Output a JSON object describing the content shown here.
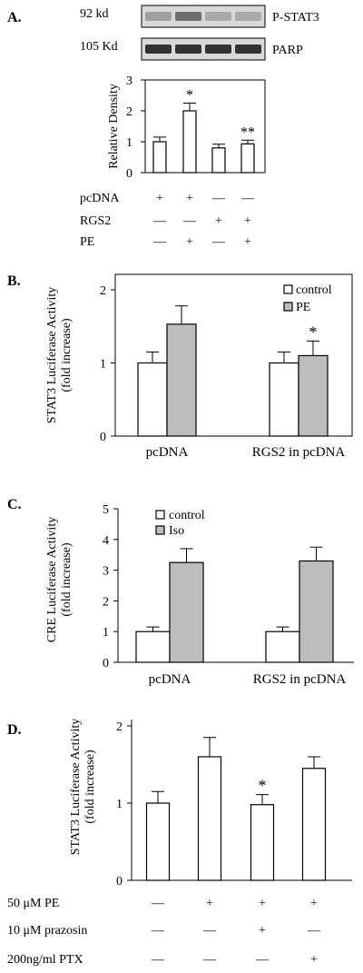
{
  "chart_data": [
    {
      "panel": "A.",
      "type": "bar",
      "blots": [
        {
          "mw": "92 kd",
          "name": "P-STAT3",
          "band_intensity": [
            0.35,
            0.6,
            0.3,
            0.3
          ]
        },
        {
          "mw": "105 Kd",
          "name": "PARP",
          "band_intensity": [
            0.9,
            0.9,
            0.9,
            0.9
          ]
        }
      ],
      "ylabel": "Relative Density",
      "ylim": [
        0,
        3
      ],
      "yticks": [
        "0",
        "1",
        "2",
        "3"
      ],
      "values": [
        1.0,
        2.0,
        0.8,
        0.93
      ],
      "errors": [
        0.15,
        0.25,
        0.12,
        0.12
      ],
      "annotations": [
        "",
        "*",
        "",
        "**"
      ],
      "conditions": [
        {
          "label": "pcDNA",
          "marks": [
            "+",
            "+",
            "—",
            "—"
          ]
        },
        {
          "label": "RGS2",
          "marks": [
            "—",
            "—",
            "+",
            "+"
          ]
        },
        {
          "label": "PE",
          "marks": [
            "—",
            "+",
            "—",
            "+"
          ]
        }
      ]
    },
    {
      "panel": "B.",
      "type": "bar",
      "ylabel": [
        "STAT3 Luciferase Activity",
        "(fold increase)"
      ],
      "ylim": [
        0,
        2
      ],
      "yticks": [
        "0",
        "1",
        "2"
      ],
      "categories": [
        "pcDNA",
        "RGS2 in pcDNA"
      ],
      "series": [
        {
          "name": "control",
          "color": "#ffffff",
          "values": [
            1.0,
            1.0
          ],
          "errors": [
            0.15,
            0.15
          ],
          "annotations": [
            "",
            ""
          ]
        },
        {
          "name": "PE",
          "color": "#bdbdbd",
          "values": [
            1.53,
            1.1
          ],
          "errors": [
            0.25,
            0.2
          ],
          "annotations": [
            "",
            "*"
          ]
        }
      ],
      "legend": "top-right"
    },
    {
      "panel": "C.",
      "type": "bar",
      "ylabel": [
        "CRE Luciferase Activity",
        "(fold increase)"
      ],
      "ylim": [
        0,
        5
      ],
      "yticks": [
        "0",
        "1",
        "2",
        "3",
        "4",
        "5"
      ],
      "categories": [
        "pcDNA",
        "RGS2 in pcDNA"
      ],
      "series": [
        {
          "name": "control",
          "color": "#ffffff",
          "values": [
            1.0,
            1.0
          ],
          "errors": [
            0.15,
            0.15
          ]
        },
        {
          "name": "Iso",
          "color": "#bdbdbd",
          "values": [
            3.25,
            3.3
          ],
          "errors": [
            0.45,
            0.45
          ]
        }
      ],
      "legend": "top-left"
    },
    {
      "panel": "D.",
      "type": "bar",
      "ylabel": [
        "STAT3 Luciferase Activity",
        "(fold increase)"
      ],
      "ylim": [
        0,
        2
      ],
      "yticks": [
        "0",
        "1",
        "2"
      ],
      "values": [
        1.0,
        1.6,
        0.98,
        1.45
      ],
      "errors": [
        0.15,
        0.25,
        0.13,
        0.15
      ],
      "annotations": [
        "",
        "",
        "*",
        ""
      ],
      "conditions": [
        {
          "label": "50 μM PE",
          "marks": [
            "—",
            "+",
            "+",
            "+"
          ]
        },
        {
          "label": "10 μM prazosin",
          "marks": [
            "—",
            "—",
            "+",
            "—"
          ]
        },
        {
          "label": "200ng/ml PTX",
          "marks": [
            "—",
            "—",
            "—",
            "+"
          ]
        }
      ]
    }
  ]
}
